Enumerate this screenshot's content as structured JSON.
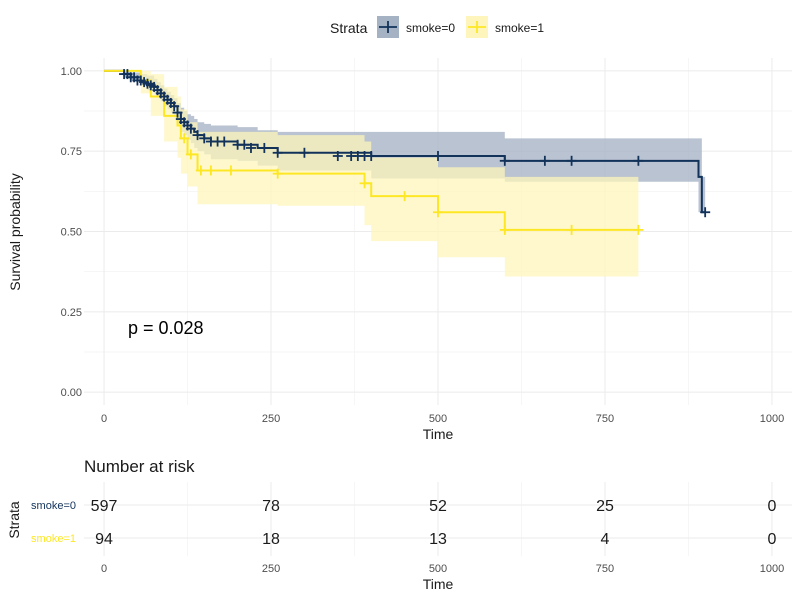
{
  "chart_data": {
    "type": "line",
    "subtype": "kaplan-meier",
    "xlabel": "Time",
    "ylabel": "Survival probability",
    "xlim": [
      -30,
      1030
    ],
    "ylim": [
      -0.04,
      1.04
    ],
    "x_ticks": [
      0,
      250,
      500,
      750,
      1000
    ],
    "y_ticks": [
      0.0,
      0.25,
      0.5,
      0.75,
      1.0
    ],
    "x_tick_labels": [
      "0",
      "250",
      "500",
      "750",
      "1000"
    ],
    "y_tick_labels": [
      "0.00",
      "0.25",
      "0.50",
      "0.75",
      "1.00"
    ],
    "grid": true,
    "legend": {
      "title": "Strata",
      "position": "top",
      "entries": [
        "smoke=0",
        "smoke=1"
      ]
    },
    "annotation": "p = 0.028",
    "series": [
      {
        "name": "smoke=0",
        "color": "#12325a",
        "fill": "#a5b2c4",
        "x": [
          0,
          30,
          40,
          55,
          65,
          75,
          80,
          85,
          90,
          95,
          100,
          105,
          110,
          115,
          120,
          125,
          130,
          135,
          140,
          150,
          160,
          200,
          230,
          260,
          400,
          600,
          890,
          895,
          900
        ],
        "y": [
          1.0,
          0.99,
          0.98,
          0.97,
          0.96,
          0.95,
          0.94,
          0.93,
          0.92,
          0.91,
          0.9,
          0.89,
          0.87,
          0.85,
          0.84,
          0.83,
          0.82,
          0.81,
          0.8,
          0.79,
          0.78,
          0.77,
          0.76,
          0.745,
          0.735,
          0.72,
          0.67,
          0.56,
          0.56
        ],
        "lower": [
          1.0,
          0.98,
          0.97,
          0.955,
          0.94,
          0.93,
          0.92,
          0.905,
          0.89,
          0.88,
          0.87,
          0.855,
          0.835,
          0.81,
          0.8,
          0.785,
          0.775,
          0.76,
          0.75,
          0.74,
          0.725,
          0.72,
          0.705,
          0.69,
          0.665,
          0.655,
          0.56,
          0.56,
          0.56
        ],
        "upper": [
          1.0,
          1.0,
          0.995,
          0.99,
          0.985,
          0.975,
          0.965,
          0.955,
          0.945,
          0.935,
          0.925,
          0.915,
          0.9,
          0.885,
          0.875,
          0.865,
          0.86,
          0.85,
          0.84,
          0.835,
          0.83,
          0.825,
          0.815,
          0.81,
          0.81,
          0.79,
          0.79,
          0.67,
          0.67
        ],
        "censor_x": [
          30,
          35,
          40,
          45,
          50,
          55,
          60,
          65,
          70,
          75,
          80,
          85,
          90,
          95,
          100,
          105,
          110,
          115,
          120,
          125,
          130,
          140,
          150,
          160,
          170,
          180,
          200,
          210,
          220,
          240,
          260,
          300,
          350,
          370,
          380,
          390,
          400,
          500,
          600,
          660,
          700,
          800,
          900
        ],
        "censor_y": [
          0.99,
          0.99,
          0.98,
          0.98,
          0.97,
          0.97,
          0.965,
          0.96,
          0.955,
          0.95,
          0.94,
          0.93,
          0.92,
          0.91,
          0.9,
          0.89,
          0.87,
          0.85,
          0.84,
          0.83,
          0.82,
          0.8,
          0.79,
          0.78,
          0.78,
          0.78,
          0.77,
          0.77,
          0.76,
          0.76,
          0.745,
          0.745,
          0.735,
          0.735,
          0.735,
          0.735,
          0.735,
          0.735,
          0.72,
          0.72,
          0.72,
          0.72,
          0.56
        ]
      },
      {
        "name": "smoke=1",
        "color": "#fde725",
        "fill": "#fdf5bb",
        "x": [
          0,
          55,
          70,
          90,
          110,
          115,
          125,
          140,
          260,
          390,
          400,
          500,
          600,
          800
        ],
        "y": [
          1.0,
          0.97,
          0.92,
          0.86,
          0.83,
          0.79,
          0.74,
          0.69,
          0.68,
          0.65,
          0.61,
          0.56,
          0.505,
          0.505
        ],
        "lower": [
          1.0,
          0.93,
          0.86,
          0.78,
          0.73,
          0.68,
          0.64,
          0.585,
          0.58,
          0.52,
          0.47,
          0.42,
          0.36,
          0.36
        ],
        "upper": [
          1.0,
          1.0,
          0.99,
          0.95,
          0.92,
          0.88,
          0.84,
          0.81,
          0.8,
          0.78,
          0.73,
          0.7,
          0.67,
          0.67
        ],
        "censor_x": [
          120,
          130,
          145,
          160,
          190,
          260,
          390,
          450,
          500,
          600,
          700,
          800
        ],
        "censor_y": [
          0.79,
          0.74,
          0.69,
          0.69,
          0.69,
          0.68,
          0.65,
          0.61,
          0.56,
          0.505,
          0.505,
          0.505
        ]
      }
    ]
  },
  "risk_table": {
    "title": "Number at risk",
    "strata_label": "Strata",
    "xlabel": "Time",
    "times": [
      0,
      250,
      500,
      750,
      1000
    ],
    "time_labels": [
      "0",
      "250",
      "500",
      "750",
      "1000"
    ],
    "rows": [
      {
        "name": "smoke=0",
        "color": "#12325a",
        "counts": [
          "597",
          "78",
          "52",
          "25",
          "0"
        ]
      },
      {
        "name": "smoke=1",
        "color": "#fde725",
        "counts": [
          "94",
          "18",
          "13",
          "4",
          "0"
        ]
      }
    ]
  }
}
